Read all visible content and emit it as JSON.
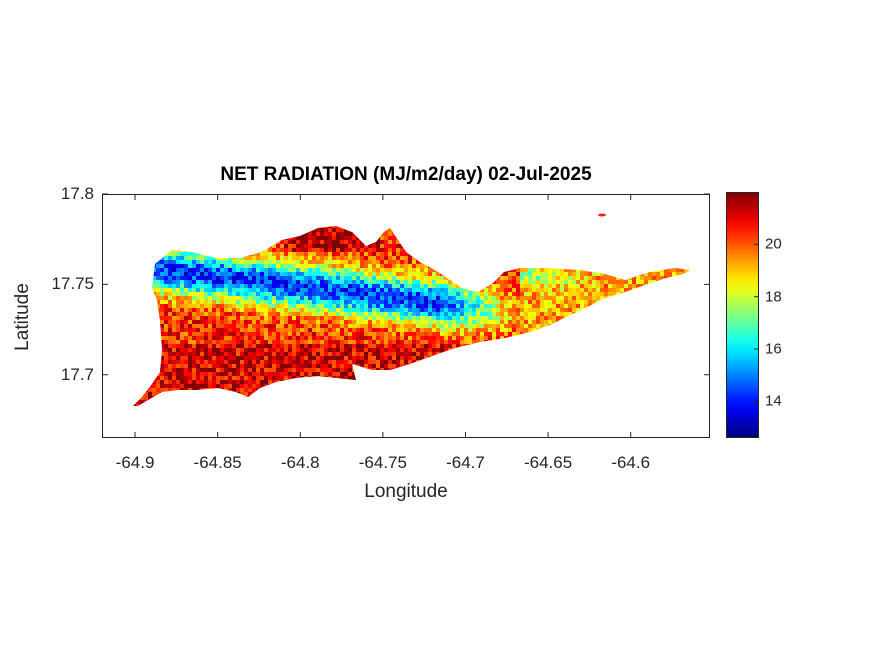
{
  "chart_data": {
    "type": "heatmap",
    "title": "NET RADIATION (MJ/m2/day) 02-Jul-2025",
    "xlabel": "Longitude",
    "ylabel": "Latitude",
    "xlim": [
      -64.92,
      -64.552
    ],
    "ylim": [
      17.665,
      17.8
    ],
    "x_ticks": [
      "-64.9",
      "-64.85",
      "-64.8",
      "-64.75",
      "-64.7",
      "-64.65",
      "-64.6"
    ],
    "y_ticks": [
      "17.7",
      "17.75",
      "17.8"
    ],
    "colorbar": {
      "min": 12.6,
      "max": 22,
      "ticks": [
        "14",
        "16",
        "18",
        "20"
      ],
      "colormap": "jet"
    },
    "grid": false
  }
}
